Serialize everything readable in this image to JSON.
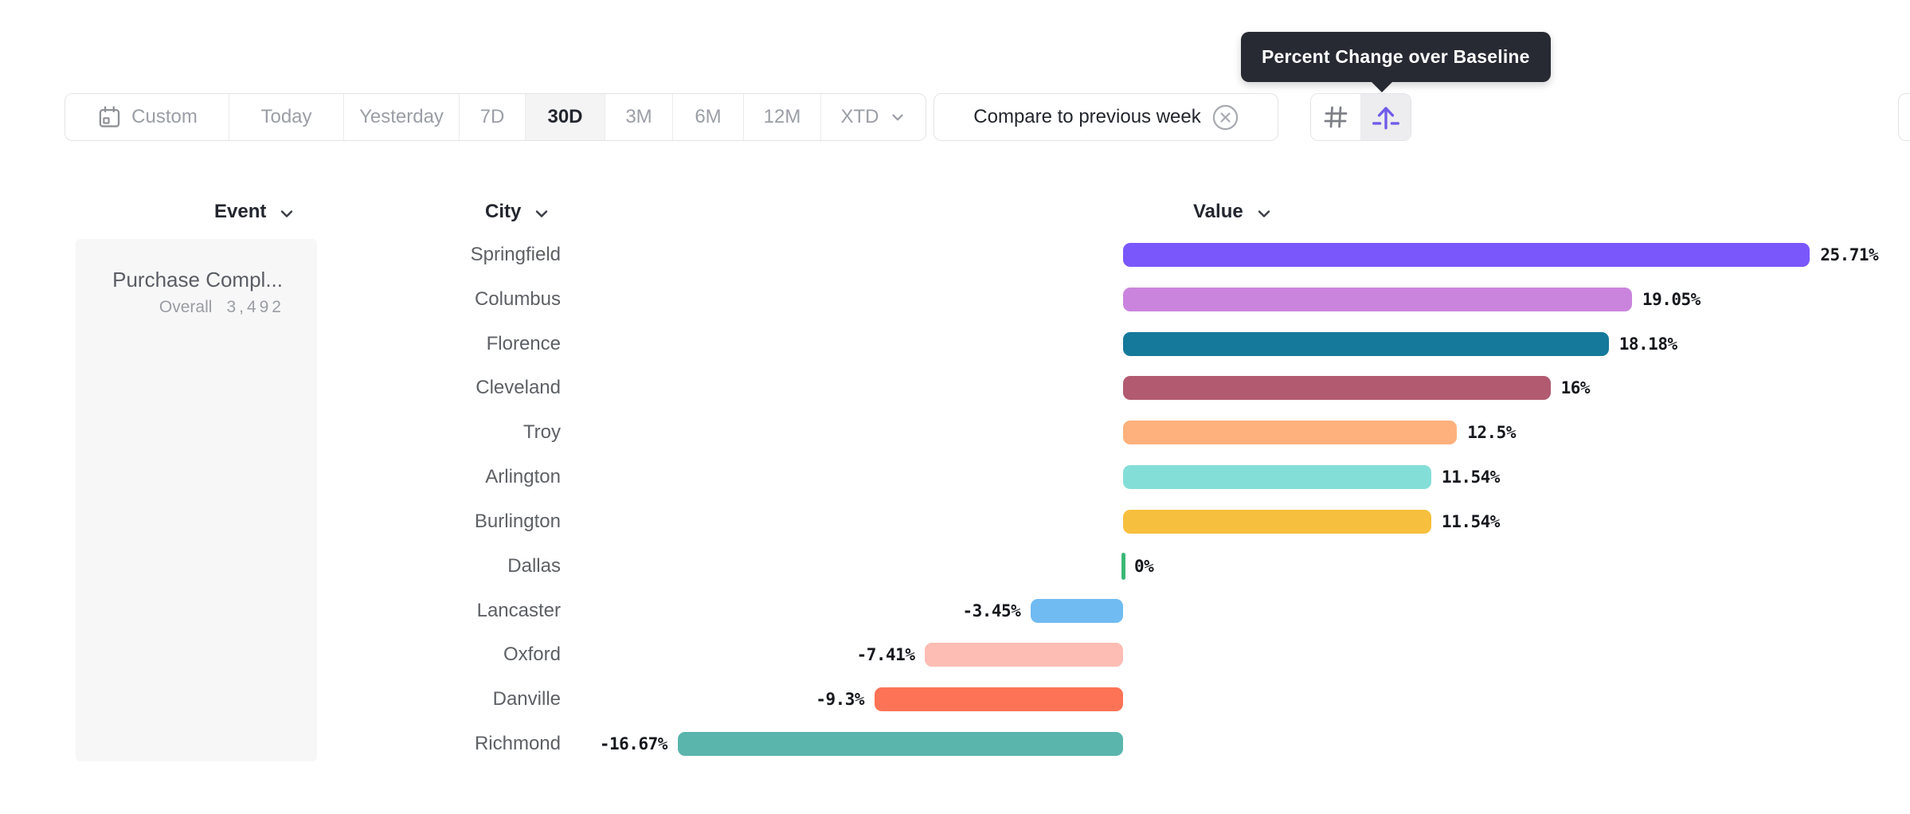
{
  "tooltip": {
    "text": "Percent Change over Baseline"
  },
  "toolbar": {
    "date_ranges": [
      {
        "label": "Custom",
        "selected": false,
        "has_calendar_icon": true,
        "has_chevron": false
      },
      {
        "label": "Today",
        "selected": false,
        "has_calendar_icon": false,
        "has_chevron": false
      },
      {
        "label": "Yesterday",
        "selected": false,
        "has_calendar_icon": false,
        "has_chevron": false
      },
      {
        "label": "7D",
        "selected": false,
        "has_calendar_icon": false,
        "has_chevron": false
      },
      {
        "label": "30D",
        "selected": true,
        "has_calendar_icon": false,
        "has_chevron": false
      },
      {
        "label": "3M",
        "selected": false,
        "has_calendar_icon": false,
        "has_chevron": false
      },
      {
        "label": "6M",
        "selected": false,
        "has_calendar_icon": false,
        "has_chevron": false
      },
      {
        "label": "12M",
        "selected": false,
        "has_calendar_icon": false,
        "has_chevron": false
      },
      {
        "label": "XTD",
        "selected": false,
        "has_calendar_icon": false,
        "has_chevron": true
      }
    ],
    "compare_chip": {
      "label": "Compare to previous week",
      "close_icon": "circle-x-icon"
    },
    "view_toggle": {
      "options": [
        {
          "icon": "hash-icon",
          "selected": false
        },
        {
          "icon": "percent-baseline-arrow-icon",
          "selected": true
        }
      ]
    }
  },
  "table": {
    "columns": [
      {
        "label": "Event",
        "sortable": true
      },
      {
        "label": "City",
        "sortable": true
      },
      {
        "label": "Value",
        "sortable": true
      }
    ],
    "event": {
      "name": "Purchase Compl...",
      "overall_label": "Overall",
      "overall_value": "3,492"
    }
  },
  "chart_data": {
    "type": "bar",
    "orientation": "horizontal",
    "series_name": "Percent Change over Baseline",
    "unit": "%",
    "baseline": 0,
    "categories": [
      "Springfield",
      "Columbus",
      "Florence",
      "Cleveland",
      "Troy",
      "Arlington",
      "Burlington",
      "Dallas",
      "Lancaster",
      "Oxford",
      "Danville",
      "Richmond"
    ],
    "values": [
      25.71,
      19.05,
      18.18,
      16,
      12.5,
      11.54,
      11.54,
      0,
      -3.45,
      -7.41,
      -9.3,
      -16.67
    ],
    "value_labels": [
      "25.71%",
      "19.05%",
      "18.18%",
      "16%",
      "12.5%",
      "11.54%",
      "11.54%",
      "0%",
      "-3.45%",
      "-7.41%",
      "-9.3%",
      "-16.67%"
    ],
    "bar_colors": [
      "#7a57fb",
      "#cb84de",
      "#15799b",
      "#b15a70",
      "#feb17c",
      "#84ded8",
      "#f7bf3e",
      "#3bb877",
      "#70bbf1",
      "#fdbdb4",
      "#fd7356",
      "#5ab5ac"
    ]
  },
  "colors": {
    "accent_purple": "#6f5ce8",
    "zero_tick_green": "#3bb877",
    "tooltip_bg": "#282a33",
    "selected_segment_bg": "#f4f4f5",
    "border": "#e3e3e6",
    "muted_text": "#9b9ea6",
    "dark_text": "#23262e",
    "city_text": "#5d6065",
    "panel_bg": "#f7f7f8"
  }
}
